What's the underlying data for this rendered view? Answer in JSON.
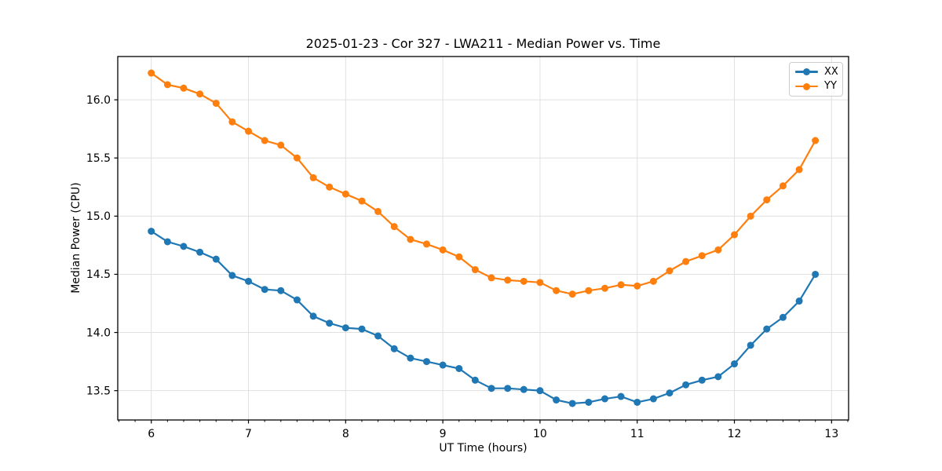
{
  "figure": {
    "background": "#ffffff"
  },
  "chart_data": {
    "type": "line",
    "title": "2025-01-23 - Cor 327 - LWA211 - Median Power vs. Time",
    "xlabel": "UT Time (hours)",
    "ylabel": "Median Power (CPU)",
    "xlim": [
      5.655,
      13.175
    ],
    "ylim": [
      13.248,
      16.372
    ],
    "x_ticks": [
      6,
      7,
      8,
      9,
      10,
      11,
      12,
      13
    ],
    "x_tick_labels": [
      "6",
      "7",
      "8",
      "9",
      "10",
      "11",
      "12",
      "13"
    ],
    "y_ticks": [
      13.5,
      14.0,
      14.5,
      15.0,
      15.5,
      16.0
    ],
    "y_tick_labels": [
      "13.5",
      "14.0",
      "14.5",
      "15.0",
      "15.5",
      "16.0"
    ],
    "minor_x_step": 0.166667,
    "grid": true,
    "grid_color": "#e0e0e0",
    "legend_position": "upper right",
    "x": [
      6.0,
      6.167,
      6.333,
      6.5,
      6.667,
      6.833,
      7.0,
      7.167,
      7.333,
      7.5,
      7.667,
      7.833,
      8.0,
      8.167,
      8.333,
      8.5,
      8.667,
      8.833,
      9.0,
      9.167,
      9.333,
      9.5,
      9.667,
      9.833,
      10.0,
      10.167,
      10.333,
      10.5,
      10.667,
      10.833,
      11.0,
      11.167,
      11.333,
      11.5,
      11.667,
      11.833,
      12.0,
      12.167,
      12.333,
      12.5,
      12.667,
      12.833
    ],
    "series": [
      {
        "name": "XX",
        "color": "#1f77b4",
        "values": [
          14.87,
          14.78,
          14.74,
          14.69,
          14.63,
          14.49,
          14.44,
          14.37,
          14.36,
          14.28,
          14.14,
          14.08,
          14.04,
          14.03,
          13.97,
          13.86,
          13.78,
          13.75,
          13.72,
          13.69,
          13.59,
          13.52,
          13.52,
          13.51,
          13.5,
          13.42,
          13.39,
          13.4,
          13.43,
          13.45,
          13.4,
          13.43,
          13.48,
          13.55,
          13.59,
          13.62,
          13.73,
          13.89,
          14.03,
          14.13,
          14.27,
          14.5
        ]
      },
      {
        "name": "YY",
        "color": "#ff7f0e",
        "values": [
          16.23,
          16.13,
          16.1,
          16.05,
          15.97,
          15.81,
          15.73,
          15.65,
          15.61,
          15.5,
          15.33,
          15.25,
          15.19,
          15.13,
          15.04,
          14.91,
          14.8,
          14.76,
          14.71,
          14.65,
          14.54,
          14.47,
          14.45,
          14.44,
          14.43,
          14.36,
          14.33,
          14.36,
          14.38,
          14.41,
          14.4,
          14.44,
          14.53,
          14.61,
          14.66,
          14.71,
          14.84,
          15.0,
          15.14,
          15.26,
          15.4,
          15.65
        ]
      }
    ]
  }
}
